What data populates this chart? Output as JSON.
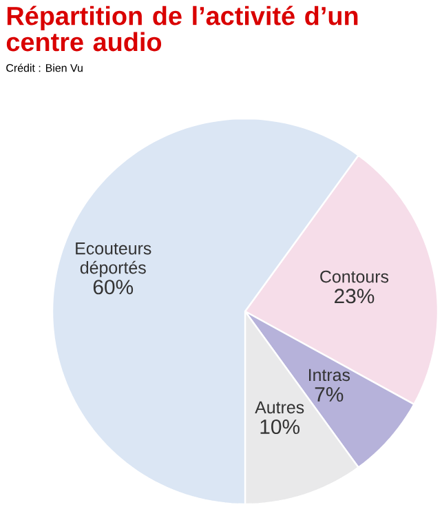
{
  "chart_data": {
    "type": "pie",
    "title": "Répartition de l’activité d’un centre audio",
    "annotations": [
      "Crédit : Bien Vu"
    ],
    "categories": [
      "Contours",
      "Intras",
      "Autres",
      "Ecouteurs déportés"
    ],
    "values": [
      23,
      7,
      10,
      60
    ],
    "value_labels": [
      "23%",
      "7%",
      "10%",
      "60%"
    ],
    "colors": [
      "#f6dde9",
      "#b6b2da",
      "#e9e9ea",
      "#dbe6f4"
    ]
  }
}
